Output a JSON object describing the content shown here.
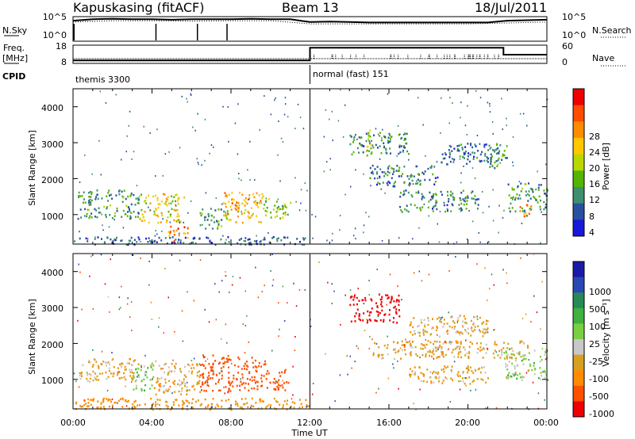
{
  "header": {
    "station": "Kapuskasing (fitACF)",
    "beam": "Beam 13",
    "date": "18/Jul/2011"
  },
  "summary": {
    "nsky_label": "N.Sky",
    "nsearch_label": "N.Search",
    "freq_label_1": "Freq.",
    "freq_label_2": "[MHz]",
    "nave_label": "Nave",
    "cpid_label": "CPID",
    "nsky_ticks": [
      "10^5",
      "10^0"
    ],
    "nsearch_ticks": [
      "10^5",
      "10^0"
    ],
    "freq_ticks": [
      "18",
      "8"
    ],
    "nave_ticks": [
      "60",
      "0"
    ],
    "cpid_segments": [
      {
        "start_hour": 0,
        "end_hour": 12,
        "label": "themis 3300"
      },
      {
        "start_hour": 12,
        "end_hour": 24,
        "label": "normal (fast) 151"
      }
    ]
  },
  "colorbars": {
    "power": {
      "label": "Power [dB]",
      "ticks": [
        "28",
        "24",
        "20",
        "16",
        "12",
        "8",
        "4"
      ],
      "colors": [
        "#ee0000",
        "#ff4c00",
        "#ff8c00",
        "#ffc800",
        "#b8d800",
        "#55b400",
        "#3c9070",
        "#2850a0",
        "#1818d8"
      ]
    },
    "velocity": {
      "label": "Velocity [m s⁻¹]",
      "ticks": [
        "1000",
        "500",
        "100",
        "25",
        "-25",
        "-100",
        "-500",
        "-1000"
      ],
      "colors": [
        "#1a1aa8",
        "#2a48b4",
        "#288858",
        "#40b040",
        "#78d040",
        "#c8c8c8",
        "#d8a020",
        "#ff8c00",
        "#ff5000",
        "#ee0000"
      ]
    }
  },
  "axes": {
    "ylabel": "Slant Range [km]",
    "xlabel": "Time UT",
    "yticks": [
      "4000",
      "3000",
      "2000",
      "1000"
    ],
    "xticks": [
      "00:00",
      "04:00",
      "08:00",
      "12:00",
      "16:00",
      "20:00",
      "00:00"
    ]
  },
  "chart_data": [
    {
      "type": "line",
      "title": "",
      "series": [
        {
          "name": "N.Sky",
          "hours": [
            0,
            1,
            2,
            3,
            4,
            5,
            6,
            7,
            8,
            9,
            10,
            11,
            12,
            13,
            14,
            15,
            16,
            17,
            18,
            19,
            20,
            21,
            22,
            23,
            24
          ],
          "log10_values": [
            4.3,
            4.6,
            4.7,
            4.6,
            4.6,
            4.5,
            4.6,
            4.6,
            4.6,
            4.7,
            4.6,
            4.6,
            4.0,
            4.1,
            4.0,
            3.9,
            3.9,
            3.9,
            3.9,
            3.9,
            3.9,
            3.9,
            4.3,
            4.4,
            4.5
          ]
        },
        {
          "name": "N.Search",
          "hours": [
            0,
            2,
            4,
            6,
            8,
            10,
            12,
            14,
            16,
            18,
            20,
            22,
            24
          ],
          "log10_values": [
            4.0,
            4.3,
            4.3,
            4.2,
            4.3,
            4.3,
            3.6,
            3.6,
            3.6,
            3.6,
            3.6,
            3.8,
            4.0
          ]
        }
      ],
      "ylim": [
        0,
        5
      ]
    },
    {
      "type": "line",
      "title": "",
      "series": [
        {
          "name": "Freq.",
          "hours": [
            0,
            12,
            12,
            24
          ],
          "values": [
            10.5,
            10.5,
            10.5,
            10.5
          ]
        },
        {
          "name": "Nave",
          "hours": [
            0,
            12,
            12,
            21.8,
            21.8,
            24
          ],
          "values": [
            8,
            8,
            56,
            56,
            30,
            30
          ]
        }
      ],
      "ylim_freq": [
        8,
        18
      ],
      "ylim_nave": [
        0,
        60
      ]
    },
    {
      "type": "heatmap",
      "title": "",
      "quantity": "Power [dB]",
      "xlabel": "Time UT",
      "ylabel": "Slant Range [km]",
      "xlim_hours": [
        0,
        24
      ],
      "ylim_km": [
        180,
        4500
      ],
      "clim": [
        0,
        30
      ],
      "regions": [
        {
          "t0": 0.2,
          "t1": 3.3,
          "r0": 900,
          "r1": 1700,
          "value": 9
        },
        {
          "t0": 3.3,
          "t1": 5.6,
          "r0": 800,
          "r1": 1600,
          "value": 17
        },
        {
          "t0": 4.8,
          "t1": 5.8,
          "r0": 230,
          "r1": 700,
          "value": 24
        },
        {
          "t0": 6.4,
          "t1": 7.8,
          "r0": 600,
          "r1": 1200,
          "value": 10
        },
        {
          "t0": 7.5,
          "t1": 9.6,
          "r0": 800,
          "r1": 1650,
          "value": 19
        },
        {
          "t0": 9.6,
          "t1": 11.0,
          "r0": 900,
          "r1": 1500,
          "value": 13
        },
        {
          "t0": 14.0,
          "t1": 17.0,
          "r0": 2700,
          "r1": 3300,
          "value": 8
        },
        {
          "t0": 14.8,
          "t1": 15.1,
          "r0": 2600,
          "r1": 3600,
          "value": 15
        },
        {
          "t0": 15.0,
          "t1": 18.5,
          "r0": 1800,
          "r1": 2400,
          "value": 7
        },
        {
          "t0": 16.5,
          "t1": 20.5,
          "r0": 1100,
          "r1": 1700,
          "value": 8
        },
        {
          "t0": 18.6,
          "t1": 21.5,
          "r0": 2400,
          "r1": 3000,
          "value": 6
        },
        {
          "t0": 20.8,
          "t1": 22.0,
          "r0": 2300,
          "r1": 3000,
          "value": 9
        },
        {
          "t0": 22.0,
          "t1": 24.0,
          "r0": 1100,
          "r1": 1900,
          "value": 9
        },
        {
          "t0": 22.6,
          "t1": 23.2,
          "r0": 900,
          "r1": 1300,
          "value": 22
        },
        {
          "t0": 0.0,
          "t1": 12.0,
          "r0": 180,
          "r1": 400,
          "value": 5
        }
      ]
    },
    {
      "type": "heatmap",
      "title": "",
      "quantity": "Velocity [m s⁻¹]",
      "xlabel": "Time UT",
      "ylabel": "Slant Range [km]",
      "xlim_hours": [
        0,
        24
      ],
      "ylim_km": [
        180,
        4500
      ],
      "regions": [
        {
          "t0": 0.3,
          "t1": 3.3,
          "r0": 900,
          "r1": 1600,
          "value": 0
        },
        {
          "t0": 3.0,
          "t1": 4.0,
          "r0": 700,
          "r1": 1500,
          "value": 80
        },
        {
          "t0": 4.0,
          "t1": 6.4,
          "r0": 600,
          "r1": 1500,
          "value": 0
        },
        {
          "t0": 6.4,
          "t1": 9.8,
          "r0": 700,
          "r1": 1700,
          "value": -300
        },
        {
          "t0": 9.8,
          "t1": 11.0,
          "r0": 700,
          "r1": 1300,
          "value": -150
        },
        {
          "t0": 14.0,
          "t1": 16.5,
          "r0": 2600,
          "r1": 3400,
          "value": -700
        },
        {
          "t0": 17.0,
          "t1": 21.0,
          "r0": 2200,
          "r1": 2800,
          "value": 0
        },
        {
          "t0": 15.0,
          "t1": 23.0,
          "r0": 1600,
          "r1": 2100,
          "value": 0
        },
        {
          "t0": 17.0,
          "t1": 21.0,
          "r0": 900,
          "r1": 1400,
          "value": 0
        },
        {
          "t0": 21.8,
          "t1": 24.0,
          "r0": 1000,
          "r1": 1900,
          "value": 60
        },
        {
          "t0": 0.0,
          "t1": 12.0,
          "r0": 180,
          "r1": 500,
          "value": -50
        }
      ]
    }
  ]
}
